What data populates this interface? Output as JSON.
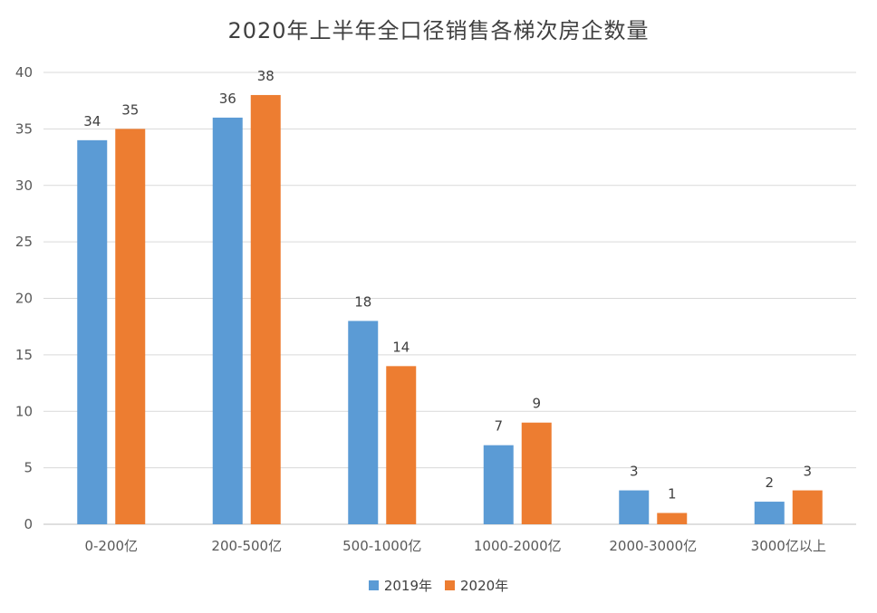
{
  "chart_data": {
    "type": "bar",
    "title": "2020年上半年全口径销售各梯次房企数量",
    "categories": [
      "0-200亿",
      "200-500亿",
      "500-1000亿",
      "1000-2000亿",
      "2000-3000亿",
      "3000亿以上"
    ],
    "series": [
      {
        "name": "2019年",
        "color": "#5b9bd5",
        "values": [
          34,
          36,
          18,
          7,
          3,
          2
        ]
      },
      {
        "name": "2020年",
        "color": "#ed7d31",
        "values": [
          35,
          38,
          14,
          9,
          1,
          3
        ]
      }
    ],
    "ylim": [
      0,
      40
    ],
    "yticks": [
      0,
      5,
      10,
      15,
      20,
      25,
      30,
      35,
      40
    ],
    "grid": true,
    "legend_position": "bottom"
  }
}
